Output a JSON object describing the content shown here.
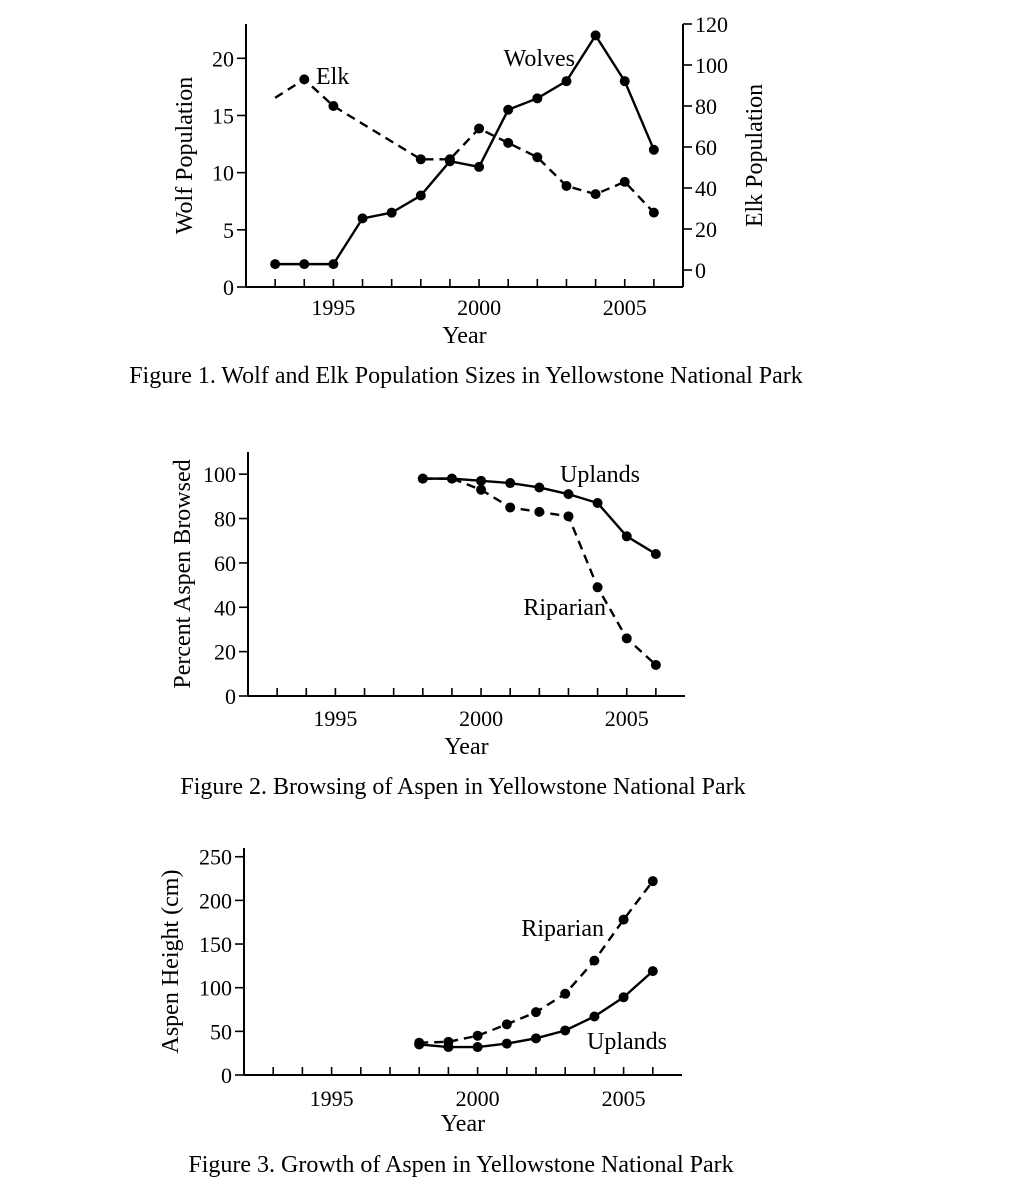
{
  "chart_data": [
    {
      "type": "line",
      "title": "Figure 1. Wolf and Elk Population Sizes in Yellowstone National Park",
      "xlabel": "Year",
      "ylabel": "Wolf Population",
      "y2label": "Elk Population",
      "xlim": [
        1992,
        2007
      ],
      "ylim": [
        0,
        23
      ],
      "y2lim": [
        0,
        120
      ],
      "xticks": [
        1995,
        2000,
        2005
      ],
      "yticks": [
        0,
        5,
        10,
        15,
        20
      ],
      "y2ticks": [
        0,
        20,
        40,
        60,
        80,
        100,
        120
      ],
      "series": [
        {
          "name": "Wolves",
          "axis": "left",
          "style": "solid",
          "markers": true,
          "x": [
            1993,
            1994,
            1995,
            1996,
            1997,
            1998,
            1999,
            2000,
            2001,
            2002,
            2003,
            2004,
            2005,
            2006
          ],
          "values": [
            2,
            2,
            2,
            6,
            6.5,
            8,
            11,
            10.5,
            15.5,
            16.5,
            18,
            22,
            18,
            12
          ]
        },
        {
          "name": "Elk",
          "axis": "right",
          "style": "dashed",
          "markers": true,
          "marker_start_index": 1,
          "x": [
            1993,
            1994,
            1995,
            1998,
            1999,
            2000,
            2001,
            2002,
            2003,
            2004,
            2005,
            2006
          ],
          "values": [
            84,
            93,
            80,
            54,
            54,
            69,
            62,
            55,
            41,
            37,
            43,
            28
          ]
        }
      ]
    },
    {
      "type": "line",
      "title": "Figure 2. Browsing of Aspen in Yellowstone National Park",
      "xlabel": "Year",
      "ylabel": "Percent Aspen Browsed",
      "xlim": [
        1992,
        2007
      ],
      "ylim": [
        0,
        110
      ],
      "xticks": [
        1995,
        2000,
        2005
      ],
      "yticks": [
        0,
        20,
        40,
        60,
        80,
        100
      ],
      "series": [
        {
          "name": "Uplands",
          "style": "solid",
          "markers": true,
          "x": [
            1998,
            1999,
            2000,
            2001,
            2002,
            2003,
            2004,
            2005,
            2006
          ],
          "values": [
            98,
            98,
            97,
            96,
            94,
            91,
            87,
            72,
            64
          ]
        },
        {
          "name": "Riparian",
          "style": "dashed",
          "markers": true,
          "x": [
            1998,
            1999,
            2000,
            2001,
            2002,
            2003,
            2004,
            2005,
            2006
          ],
          "values": [
            98,
            98,
            93,
            85,
            83,
            81,
            49,
            26,
            14
          ]
        }
      ]
    },
    {
      "type": "line",
      "title": "Figure 3. Growth of Aspen in Yellowstone National Park",
      "xlabel": "Year",
      "ylabel": "Aspen Height (cm)",
      "xlim": [
        1992,
        2007
      ],
      "ylim": [
        0,
        260
      ],
      "xticks": [
        1995,
        2000,
        2005
      ],
      "yticks": [
        0,
        50,
        100,
        150,
        200,
        250
      ],
      "series": [
        {
          "name": "Riparian",
          "style": "dashed",
          "markers": true,
          "x": [
            1998,
            1999,
            2000,
            2001,
            2002,
            2003,
            2004,
            2005,
            2006
          ],
          "values": [
            37,
            38,
            45,
            58,
            72,
            93,
            131,
            178,
            222
          ]
        },
        {
          "name": "Uplands",
          "style": "solid",
          "markers": true,
          "x": [
            1998,
            1999,
            2000,
            2001,
            2002,
            2003,
            2004,
            2005,
            2006
          ],
          "values": [
            35,
            32,
            32,
            36,
            42,
            51,
            67,
            89,
            119
          ]
        }
      ]
    }
  ]
}
